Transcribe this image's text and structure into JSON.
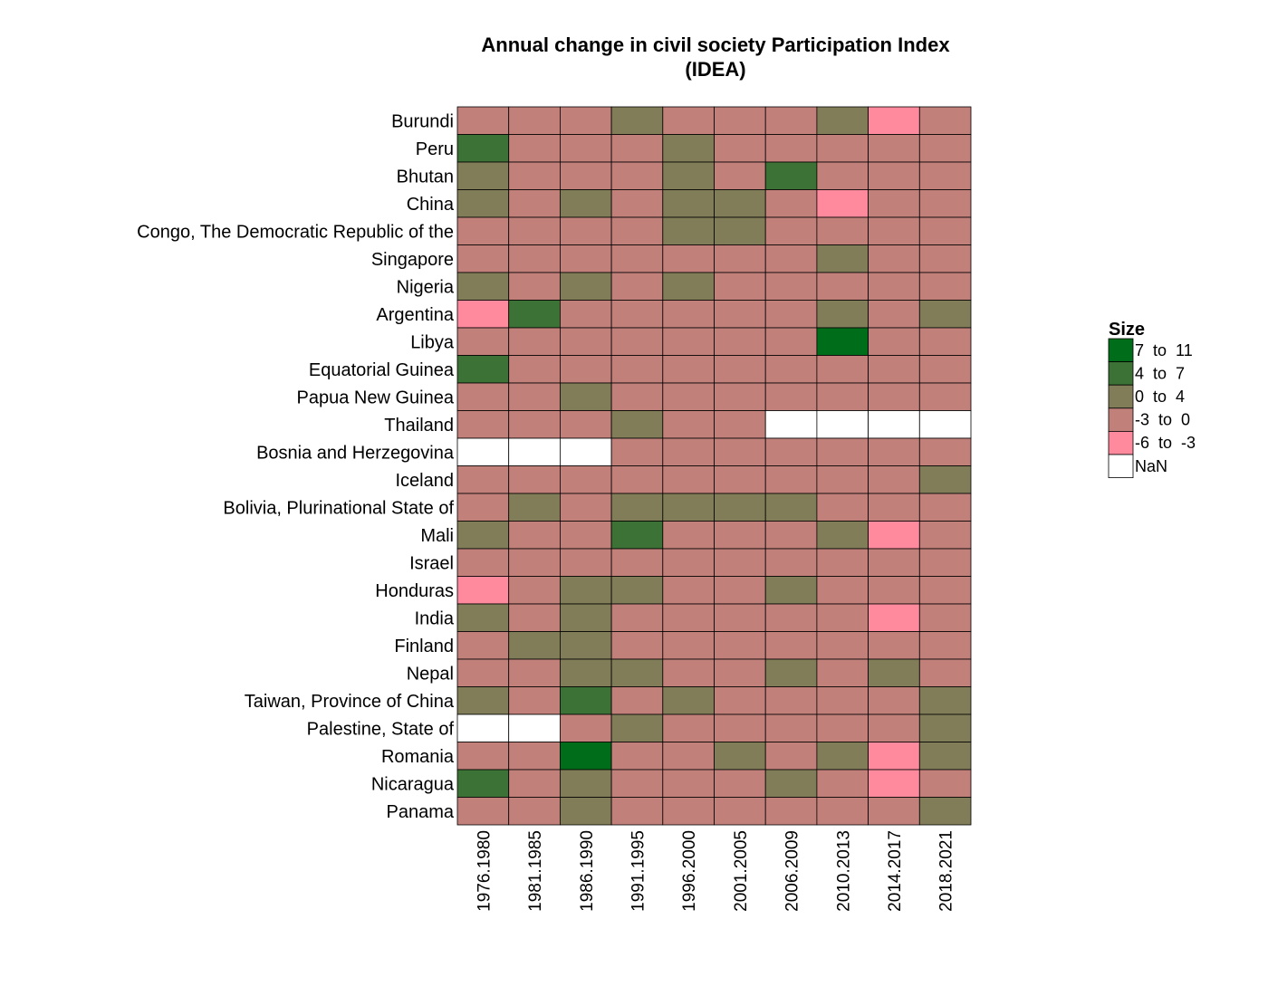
{
  "chart_data": {
    "type": "heatmap",
    "title": "Annual change in civil society Participation Index\n(IDEA)",
    "xlabel": "",
    "ylabel": "",
    "x": [
      "1976.1980",
      "1981.1985",
      "1986.1990",
      "1991.1995",
      "1996.2000",
      "2001.2005",
      "2006.2009",
      "2010.2013",
      "2014.2017",
      "2018.2021"
    ],
    "y": [
      "Burundi",
      "Peru",
      "Bhutan",
      "China",
      "Congo, The Democratic Republic of the",
      "Singapore",
      "Nigeria",
      "Argentina",
      "Libya",
      "Equatorial Guinea",
      "Papua New Guinea",
      "Thailand",
      "Bosnia and Herzegovina",
      "Iceland",
      "Bolivia, Plurinational State of",
      "Mali",
      "Israel",
      "Honduras",
      "India",
      "Finland",
      "Nepal",
      "Taiwan, Province of China",
      "Palestine, State of",
      "Romania",
      "Nicaragua",
      "Panama"
    ],
    "cells": [
      [
        "-3 to 0",
        "-3 to 0",
        "-3 to 0",
        "0 to 4",
        "-3 to 0",
        "-3 to 0",
        "-3 to 0",
        "0 to 4",
        "-6 to -3",
        "-3 to 0"
      ],
      [
        "4 to 7",
        "-3 to 0",
        "-3 to 0",
        "-3 to 0",
        "0 to 4",
        "-3 to 0",
        "-3 to 0",
        "-3 to 0",
        "-3 to 0",
        "-3 to 0"
      ],
      [
        "0 to 4",
        "-3 to 0",
        "-3 to 0",
        "-3 to 0",
        "0 to 4",
        "-3 to 0",
        "4 to 7",
        "-3 to 0",
        "-3 to 0",
        "-3 to 0"
      ],
      [
        "0 to 4",
        "-3 to 0",
        "0 to 4",
        "-3 to 0",
        "0 to 4",
        "0 to 4",
        "-3 to 0",
        "-6 to -3",
        "-3 to 0",
        "-3 to 0"
      ],
      [
        "-3 to 0",
        "-3 to 0",
        "-3 to 0",
        "-3 to 0",
        "0 to 4",
        "0 to 4",
        "-3 to 0",
        "-3 to 0",
        "-3 to 0",
        "-3 to 0"
      ],
      [
        "-3 to 0",
        "-3 to 0",
        "-3 to 0",
        "-3 to 0",
        "-3 to 0",
        "-3 to 0",
        "-3 to 0",
        "0 to 4",
        "-3 to 0",
        "-3 to 0"
      ],
      [
        "0 to 4",
        "-3 to 0",
        "0 to 4",
        "-3 to 0",
        "0 to 4",
        "-3 to 0",
        "-3 to 0",
        "-3 to 0",
        "-3 to 0",
        "-3 to 0"
      ],
      [
        "-6 to -3",
        "4 to 7",
        "-3 to 0",
        "-3 to 0",
        "-3 to 0",
        "-3 to 0",
        "-3 to 0",
        "0 to 4",
        "-3 to 0",
        "0 to 4"
      ],
      [
        "-3 to 0",
        "-3 to 0",
        "-3 to 0",
        "-3 to 0",
        "-3 to 0",
        "-3 to 0",
        "-3 to 0",
        "7 to 11",
        "-3 to 0",
        "-3 to 0"
      ],
      [
        "4 to 7",
        "-3 to 0",
        "-3 to 0",
        "-3 to 0",
        "-3 to 0",
        "-3 to 0",
        "-3 to 0",
        "-3 to 0",
        "-3 to 0",
        "-3 to 0"
      ],
      [
        "-3 to 0",
        "-3 to 0",
        "0 to 4",
        "-3 to 0",
        "-3 to 0",
        "-3 to 0",
        "-3 to 0",
        "-3 to 0",
        "-3 to 0",
        "-3 to 0"
      ],
      [
        "-3 to 0",
        "-3 to 0",
        "-3 to 0",
        "0 to 4",
        "-3 to 0",
        "-3 to 0",
        "NaN",
        "NaN",
        "NaN",
        "NaN"
      ],
      [
        "NaN",
        "NaN",
        "NaN",
        "-3 to 0",
        "-3 to 0",
        "-3 to 0",
        "-3 to 0",
        "-3 to 0",
        "-3 to 0",
        "-3 to 0"
      ],
      [
        "-3 to 0",
        "-3 to 0",
        "-3 to 0",
        "-3 to 0",
        "-3 to 0",
        "-3 to 0",
        "-3 to 0",
        "-3 to 0",
        "-3 to 0",
        "0 to 4"
      ],
      [
        "-3 to 0",
        "0 to 4",
        "-3 to 0",
        "0 to 4",
        "0 to 4",
        "0 to 4",
        "0 to 4",
        "-3 to 0",
        "-3 to 0",
        "-3 to 0"
      ],
      [
        "0 to 4",
        "-3 to 0",
        "-3 to 0",
        "4 to 7",
        "-3 to 0",
        "-3 to 0",
        "-3 to 0",
        "0 to 4",
        "-6 to -3",
        "-3 to 0"
      ],
      [
        "-3 to 0",
        "-3 to 0",
        "-3 to 0",
        "-3 to 0",
        "-3 to 0",
        "-3 to 0",
        "-3 to 0",
        "-3 to 0",
        "-3 to 0",
        "-3 to 0"
      ],
      [
        "-6 to -3",
        "-3 to 0",
        "0 to 4",
        "0 to 4",
        "-3 to 0",
        "-3 to 0",
        "0 to 4",
        "-3 to 0",
        "-3 to 0",
        "-3 to 0"
      ],
      [
        "0 to 4",
        "-3 to 0",
        "0 to 4",
        "-3 to 0",
        "-3 to 0",
        "-3 to 0",
        "-3 to 0",
        "-3 to 0",
        "-6 to -3",
        "-3 to 0"
      ],
      [
        "-3 to 0",
        "0 to 4",
        "0 to 4",
        "-3 to 0",
        "-3 to 0",
        "-3 to 0",
        "-3 to 0",
        "-3 to 0",
        "-3 to 0",
        "-3 to 0"
      ],
      [
        "-3 to 0",
        "-3 to 0",
        "0 to 4",
        "0 to 4",
        "-3 to 0",
        "-3 to 0",
        "0 to 4",
        "-3 to 0",
        "0 to 4",
        "-3 to 0"
      ],
      [
        "0 to 4",
        "-3 to 0",
        "4 to 7",
        "-3 to 0",
        "0 to 4",
        "-3 to 0",
        "-3 to 0",
        "-3 to 0",
        "-3 to 0",
        "0 to 4"
      ],
      [
        "NaN",
        "NaN",
        "-3 to 0",
        "0 to 4",
        "-3 to 0",
        "-3 to 0",
        "-3 to 0",
        "-3 to 0",
        "-3 to 0",
        "0 to 4"
      ],
      [
        "-3 to 0",
        "-3 to 0",
        "7 to 11",
        "-3 to 0",
        "-3 to 0",
        "0 to 4",
        "-3 to 0",
        "0 to 4",
        "-6 to -3",
        "0 to 4"
      ],
      [
        "4 to 7",
        "-3 to 0",
        "0 to 4",
        "-3 to 0",
        "-3 to 0",
        "-3 to 0",
        "0 to 4",
        "-3 to 0",
        "-6 to -3",
        "-3 to 0"
      ],
      [
        "-3 to 0",
        "-3 to 0",
        "0 to 4",
        "-3 to 0",
        "-3 to 0",
        "-3 to 0",
        "-3 to 0",
        "-3 to 0",
        "-3 to 0",
        "0 to 4"
      ]
    ],
    "legend": {
      "title": "Size",
      "position": "right",
      "entries": [
        {
          "label": "7  to  11",
          "category": "7 to 11",
          "color": "#006d1a"
        },
        {
          "label": "4  to  7",
          "category": "4 to 7",
          "color": "#3c7236"
        },
        {
          "label": "0  to  4",
          "category": "0 to 4",
          "color": "#807d58"
        },
        {
          "label": "-3  to  0",
          "category": "-3 to 0",
          "color": "#c2807b"
        },
        {
          "label": "-6  to  -3",
          "category": "-6 to -3",
          "color": "#ff8a9e"
        },
        {
          "label": "NaN",
          "category": "NaN",
          "color": "#ffffff"
        }
      ]
    },
    "grid": false
  }
}
